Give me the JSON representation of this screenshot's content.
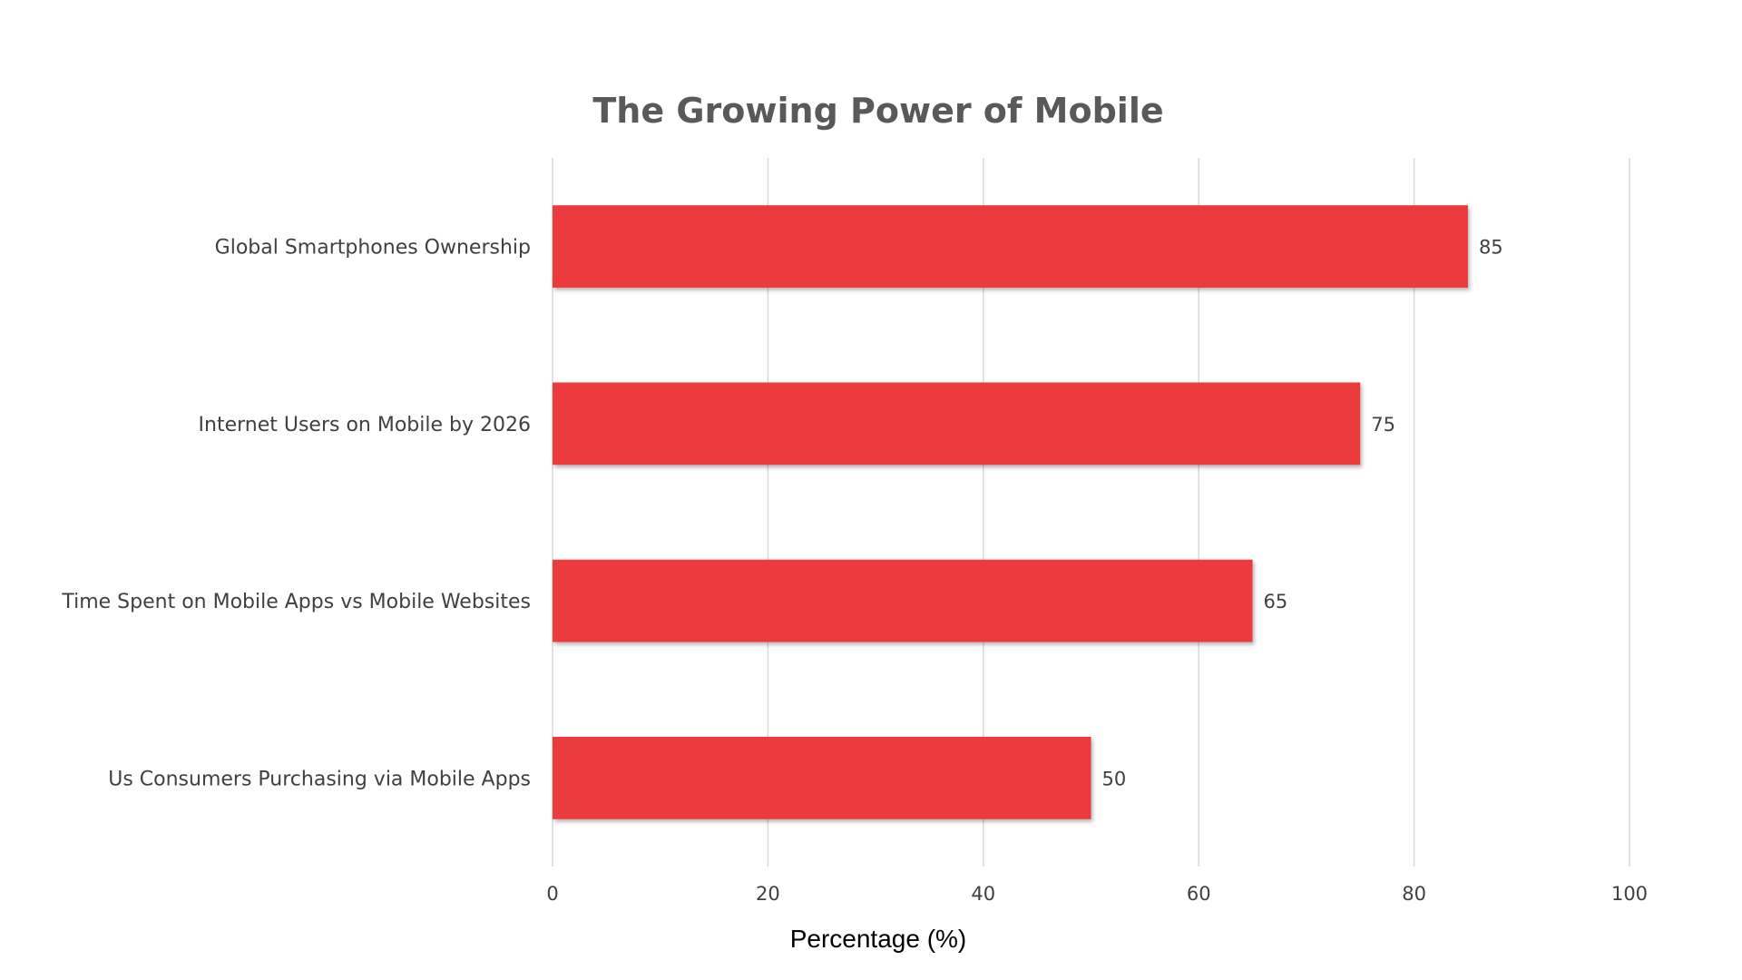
{
  "chart_data": {
    "type": "bar",
    "orientation": "horizontal",
    "title": "The Growing Power of Mobile",
    "xlabel": "Percentage (%)",
    "ylabel": "",
    "categories": [
      "Global Smartphones Ownership",
      "Internet Users on Mobile by 2026",
      "Time Spent on Mobile Apps vs Mobile Websites",
      "Us Consumers Purchasing via Mobile Apps"
    ],
    "values": [
      85,
      75,
      65,
      50
    ],
    "xlim": [
      0,
      100
    ],
    "xticks": [
      0,
      20,
      40,
      60,
      80,
      100
    ],
    "grid": true,
    "legend": "none",
    "colors": {
      "bar": "#ec3a3c",
      "grid": "#d9d9d9",
      "text": "#404040",
      "title": "#595959"
    }
  }
}
